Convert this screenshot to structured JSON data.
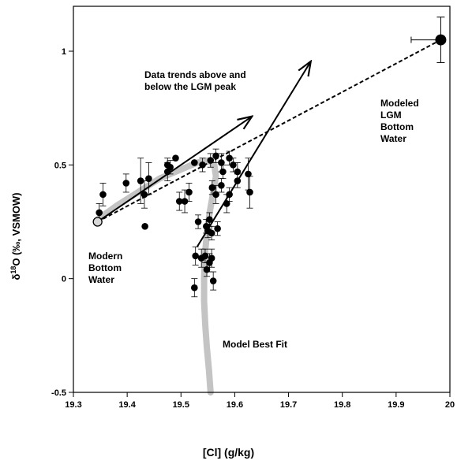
{
  "chart_data": {
    "type": "scatter",
    "xlabel": "[Cl] (g/kg)",
    "ylabel_prefix": "δ",
    "ylabel_sup": "18",
    "ylabel_rest": "O (‰, VSMOW)",
    "xlim": [
      19.3,
      20.0
    ],
    "ylim": [
      -0.5,
      1.2
    ],
    "x_ticks": [
      "19.3",
      "19.4",
      "19.5",
      "19.6",
      "19.7",
      "19.8",
      "19.9",
      "20"
    ],
    "y_ticks": [
      "-0.5",
      "0",
      "0.5",
      "1"
    ],
    "annotations": {
      "trends": "Data trends above and\nbelow the LGM peak",
      "modeled": "Modeled\nLGM\nBottom\nWater",
      "modern": "Modern\nBottom\nWater",
      "best_fit": "Model Best Fit"
    },
    "points": [
      {
        "x": 19.355,
        "y": 0.37,
        "e": 0.05
      },
      {
        "x": 19.348,
        "y": 0.29,
        "e": 0.04
      },
      {
        "x": 19.398,
        "y": 0.42,
        "e": 0.04
      },
      {
        "x": 19.425,
        "y": 0.43,
        "e": 0.1
      },
      {
        "x": 19.44,
        "y": 0.44,
        "e": 0.07
      },
      {
        "x": 19.432,
        "y": 0.37,
        "e": 0.06
      },
      {
        "x": 19.433,
        "y": 0.23,
        "e": 0
      },
      {
        "x": 19.475,
        "y": 0.5,
        "e": 0.03
      },
      {
        "x": 19.48,
        "y": 0.49,
        "e": 0.03
      },
      {
        "x": 19.49,
        "y": 0.53,
        "e": 0
      },
      {
        "x": 19.475,
        "y": 0.47,
        "e": 0.04
      },
      {
        "x": 19.497,
        "y": 0.34,
        "e": 0.04
      },
      {
        "x": 19.507,
        "y": 0.34,
        "e": 0.05
      },
      {
        "x": 19.515,
        "y": 0.38,
        "e": 0.04
      },
      {
        "x": 19.525,
        "y": 0.51,
        "e": 0
      },
      {
        "x": 19.54,
        "y": 0.5,
        "e": 0.03
      },
      {
        "x": 19.555,
        "y": 0.52,
        "e": 0.03
      },
      {
        "x": 19.565,
        "y": 0.54,
        "e": 0.03
      },
      {
        "x": 19.575,
        "y": 0.51,
        "e": 0.04
      },
      {
        "x": 19.578,
        "y": 0.47,
        "e": 0.03
      },
      {
        "x": 19.59,
        "y": 0.53,
        "e": 0.03
      },
      {
        "x": 19.597,
        "y": 0.5,
        "e": 0.03
      },
      {
        "x": 19.605,
        "y": 0.47,
        "e": 0.04
      },
      {
        "x": 19.605,
        "y": 0.43,
        "e": 0.03
      },
      {
        "x": 19.625,
        "y": 0.46,
        "e": 0.07
      },
      {
        "x": 19.575,
        "y": 0.41,
        "e": 0.03
      },
      {
        "x": 19.558,
        "y": 0.4,
        "e": 0.03
      },
      {
        "x": 19.565,
        "y": 0.37,
        "e": 0.04
      },
      {
        "x": 19.59,
        "y": 0.37,
        "e": 0.03
      },
      {
        "x": 19.585,
        "y": 0.33,
        "e": 0.04
      },
      {
        "x": 19.628,
        "y": 0.38,
        "e": 0.07
      },
      {
        "x": 19.532,
        "y": 0.25,
        "e": 0.03
      },
      {
        "x": 19.547,
        "y": 0.23,
        "e": 0.03
      },
      {
        "x": 19.553,
        "y": 0.26,
        "e": 0.03
      },
      {
        "x": 19.557,
        "y": 0.2,
        "e": 0.03
      },
      {
        "x": 19.55,
        "y": 0.21,
        "e": 0.03
      },
      {
        "x": 19.568,
        "y": 0.22,
        "e": 0.03
      },
      {
        "x": 19.527,
        "y": 0.1,
        "e": 0.04
      },
      {
        "x": 19.538,
        "y": 0.09,
        "e": 0.04
      },
      {
        "x": 19.545,
        "y": 0.1,
        "e": 0.03
      },
      {
        "x": 19.553,
        "y": 0.07,
        "e": 0.04
      },
      {
        "x": 19.557,
        "y": 0.09,
        "e": 0.04
      },
      {
        "x": 19.548,
        "y": 0.04,
        "e": 0.03
      },
      {
        "x": 19.525,
        "y": -0.04,
        "e": 0.04
      },
      {
        "x": 19.56,
        "y": -0.01,
        "e": 0.04
      }
    ],
    "modern": {
      "x": 19.345,
      "y": 0.25
    },
    "lgm": {
      "x": 19.983,
      "y": 1.05,
      "yerr": 0.1,
      "xerr_minus": 0.055
    },
    "arrow_upper": {
      "from": [
        19.345,
        0.25
      ],
      "to": [
        19.63,
        0.71
      ]
    },
    "arrow_lower": {
      "from": [
        19.53,
        0.14
      ],
      "to": [
        19.74,
        0.95
      ]
    },
    "dashed_line": {
      "from": [
        19.345,
        0.25
      ],
      "to": [
        19.983,
        1.05
      ]
    },
    "model_best_fit": [
      [
        19.345,
        0.26
      ],
      [
        19.38,
        0.32
      ],
      [
        19.42,
        0.38
      ],
      [
        19.46,
        0.44
      ],
      [
        19.5,
        0.48
      ],
      [
        19.53,
        0.51
      ],
      [
        19.55,
        0.52
      ],
      [
        19.562,
        0.5
      ],
      [
        19.565,
        0.45
      ],
      [
        19.56,
        0.38
      ],
      [
        19.554,
        0.3
      ],
      [
        19.549,
        0.22
      ],
      [
        19.545,
        0.12
      ],
      [
        19.543,
        0.0
      ],
      [
        19.543,
        -0.1
      ],
      [
        19.545,
        -0.2
      ],
      [
        19.548,
        -0.3
      ],
      [
        19.552,
        -0.4
      ],
      [
        19.555,
        -0.5
      ]
    ],
    "colors": {
      "points": "#000000",
      "model_curve": "#c4c4c4",
      "axis": "#000000"
    }
  }
}
